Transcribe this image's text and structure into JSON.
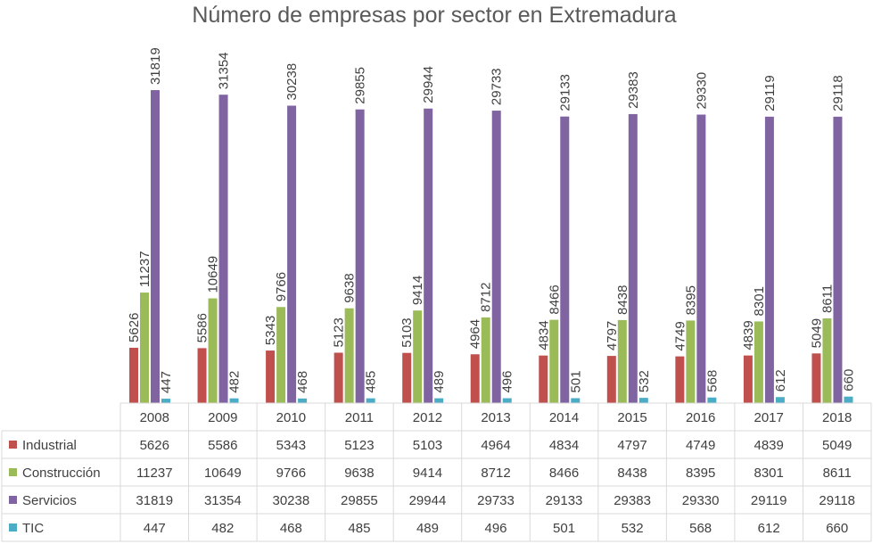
{
  "chart_data": {
    "type": "bar",
    "title": "Número de empresas por sector en Extremadura",
    "xlabel": "",
    "ylabel": "",
    "ylim": [
      0,
      34000
    ],
    "grid": false,
    "legend": "data-table-left",
    "categories": [
      "2008",
      "2009",
      "2010",
      "2011",
      "2012",
      "2013",
      "2014",
      "2015",
      "2016",
      "2017",
      "2018"
    ],
    "series": [
      {
        "name": "Industrial",
        "color": "#c0504d",
        "values": [
          5626,
          5586,
          5343,
          5123,
          5103,
          4964,
          4834,
          4797,
          4749,
          4839,
          5049
        ]
      },
      {
        "name": "Construcción",
        "color": "#9bbb59",
        "values": [
          11237,
          10649,
          9766,
          9638,
          9414,
          8712,
          8466,
          8438,
          8395,
          8301,
          8611
        ]
      },
      {
        "name": "Servicios",
        "color": "#8064a2",
        "values": [
          31819,
          31354,
          30238,
          29855,
          29944,
          29733,
          29133,
          29383,
          29330,
          29119,
          29118
        ]
      },
      {
        "name": "TIC",
        "color": "#4bacc6",
        "values": [
          447,
          482,
          468,
          485,
          489,
          496,
          501,
          532,
          568,
          612,
          660
        ]
      }
    ]
  }
}
